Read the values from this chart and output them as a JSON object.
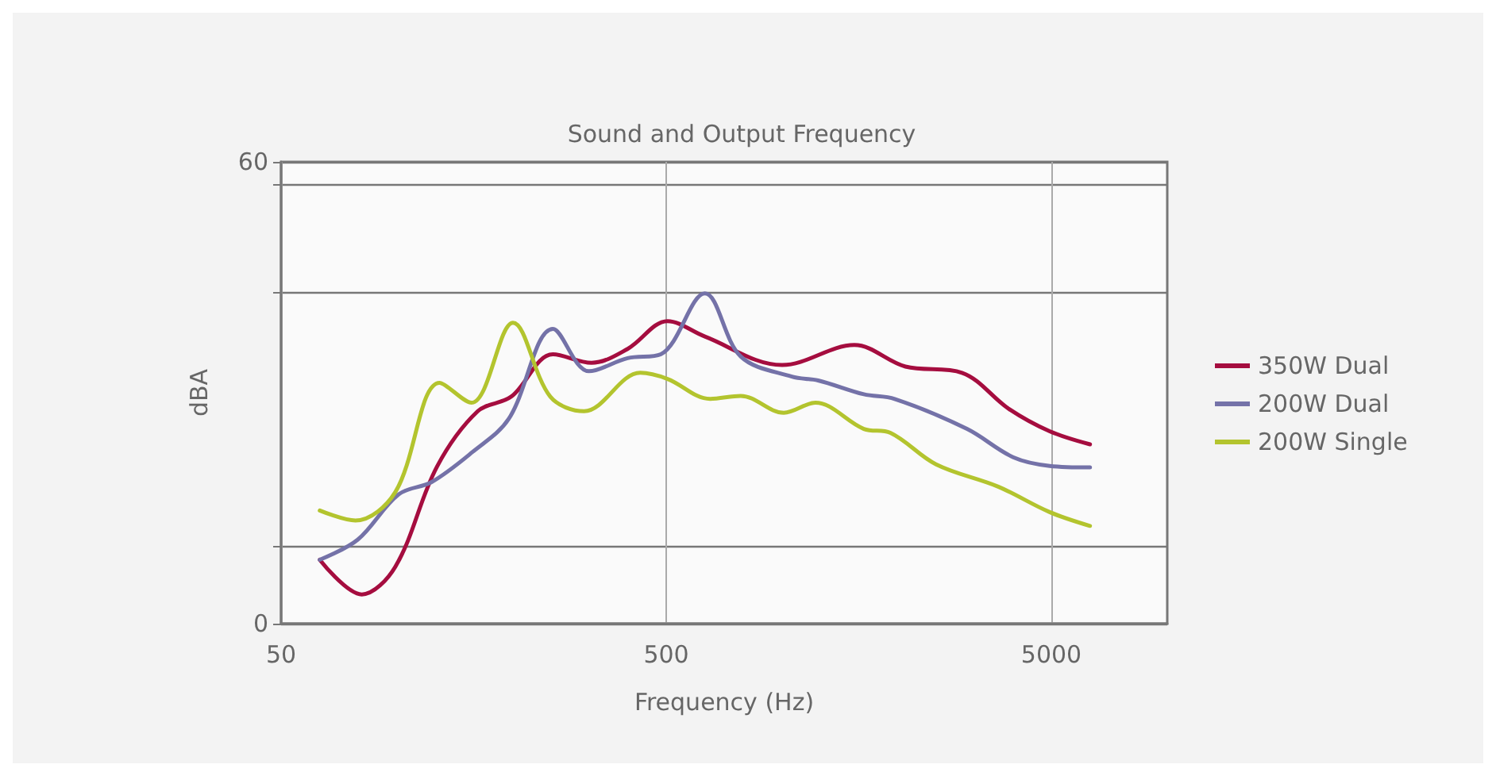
{
  "chart_data": {
    "type": "line",
    "title": "Sound and Output Frequency",
    "xlabel": "Frequency (Hz)",
    "ylabel": "dBA",
    "log": "x",
    "xlim": [
      50,
      10000
    ],
    "xticks": [
      50,
      500,
      5000
    ],
    "ylim": [
      0,
      60
    ],
    "yticks": [
      0,
      {
        "value": 10,
        "label": null
      },
      {
        "value": 43,
        "label": null
      },
      {
        "value": 57,
        "label": null
      },
      60
    ],
    "grid": true,
    "legend": "right",
    "marker": "none",
    "line_style": "solid",
    "series": [
      {
        "name": "350W Dual",
        "color": "#a50d3f",
        "x": [
          63,
          81,
          99,
          127,
          162,
          198,
          254,
          320,
          397,
          504,
          630,
          1000,
          1540,
          2090,
          2930,
          3880,
          4950,
          6300
        ],
        "values": [
          8.3,
          3.8,
          7.4,
          20.4,
          27.6,
          29.5,
          35.0,
          33.9,
          35.7,
          39.3,
          37.3,
          33.6,
          36.2,
          33.4,
          32.6,
          27.9,
          25.0,
          23.3
        ]
      },
      {
        "name": "200W Dual",
        "color": "#7472a8",
        "x": [
          63,
          79,
          101,
          123,
          157,
          195,
          254,
          315,
          397,
          484,
          630,
          781,
          1060,
          1240,
          1630,
          1960,
          3020,
          3990,
          4950,
          6300
        ],
        "values": [
          8.3,
          10.9,
          16.8,
          18.4,
          22.3,
          26.6,
          38.3,
          32.8,
          34.5,
          35.0,
          42.9,
          34.7,
          32.1,
          31.6,
          29.8,
          29.2,
          25.3,
          21.6,
          20.5,
          20.3
        ]
      },
      {
        "name": "200W Single",
        "color": "#b3c42e",
        "x": [
          63,
          78,
          99,
          129,
          156,
          200,
          250,
          306,
          428,
          504,
          650,
          781,
          1010,
          1220,
          1630,
          1910,
          2510,
          3640,
          4950,
          6300
        ],
        "values": [
          14.7,
          13.4,
          17.1,
          31.3,
          28.7,
          39.1,
          29.5,
          27.6,
          32.6,
          31.8,
          29.2,
          29.6,
          27.4,
          28.7,
          25.3,
          24.8,
          20.7,
          17.8,
          14.5,
          12.7
        ]
      }
    ]
  }
}
